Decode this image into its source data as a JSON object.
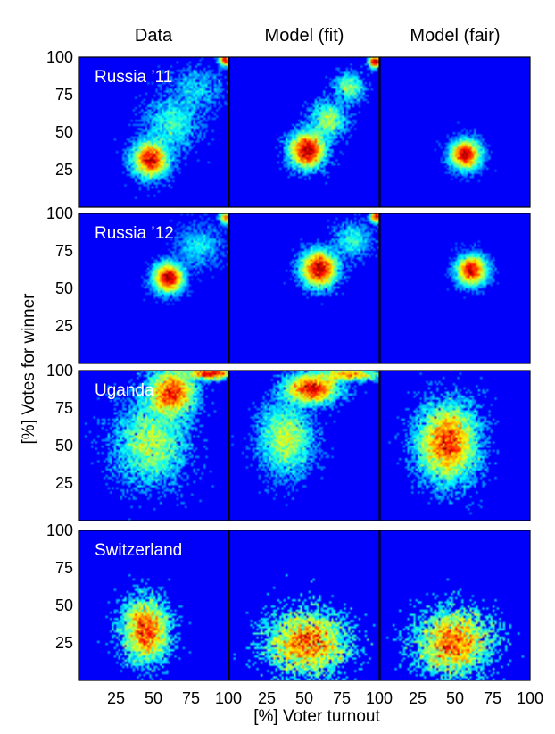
{
  "chart_data": {
    "type": "heatmap",
    "columns": [
      "Data",
      "Model (fit)",
      "Model (fair)"
    ],
    "rows": [
      "Russia ’11",
      "Russia ’12",
      "Uganda",
      "Switzerland"
    ],
    "xlabel": "[%] Voter turnout",
    "ylabel": "[%] Votes for winner",
    "x_ticks": [
      25,
      50,
      75,
      100
    ],
    "y_ticks": [
      25,
      50,
      75,
      100
    ],
    "xlim": [
      0,
      100
    ],
    "ylim": [
      0,
      100
    ],
    "colormap": [
      "#00007f",
      "#0000ff",
      "#0080ff",
      "#00ffff",
      "#80ff80",
      "#ffff00",
      "#ff8000",
      "#ff0000",
      "#800000"
    ],
    "panels": [
      [
        {
          "clusters": [
            {
              "x": 48,
              "y": 32,
              "sx": 6,
              "sy": 6,
              "w": 1
            },
            {
              "x": 62,
              "y": 55,
              "sx": 9,
              "sy": 9,
              "w": 0.35
            },
            {
              "x": 78,
              "y": 78,
              "sx": 9,
              "sy": 8,
              "w": 0.15
            },
            {
              "x": 98,
              "y": 98,
              "sx": 2,
              "sy": 2,
              "w": 0.12
            }
          ],
          "n": 9000
        },
        {
          "clusters": [
            {
              "x": 52,
              "y": 38,
              "sx": 6,
              "sy": 6,
              "w": 1
            },
            {
              "x": 66,
              "y": 58,
              "sx": 6,
              "sy": 6,
              "w": 0.25
            },
            {
              "x": 80,
              "y": 80,
              "sx": 5,
              "sy": 5,
              "w": 0.15
            },
            {
              "x": 97,
              "y": 97,
              "sx": 2,
              "sy": 2,
              "w": 0.12
            }
          ],
          "n": 9000
        },
        {
          "clusters": [
            {
              "x": 57,
              "y": 35,
              "sx": 5,
              "sy": 5,
              "w": 1
            }
          ],
          "n": 6000
        }
      ],
      [
        {
          "clusters": [
            {
              "x": 60,
              "y": 57,
              "sx": 5,
              "sy": 5,
              "w": 1
            },
            {
              "x": 80,
              "y": 78,
              "sx": 8,
              "sy": 7,
              "w": 0.18
            },
            {
              "x": 98,
              "y": 97,
              "sx": 2,
              "sy": 2,
              "w": 0.1
            }
          ],
          "n": 9000
        },
        {
          "clusters": [
            {
              "x": 60,
              "y": 63,
              "sx": 6,
              "sy": 6,
              "w": 1
            },
            {
              "x": 82,
              "y": 82,
              "sx": 6,
              "sy": 6,
              "w": 0.12
            },
            {
              "x": 98,
              "y": 98,
              "sx": 2,
              "sy": 2,
              "w": 0.1
            }
          ],
          "n": 9000
        },
        {
          "clusters": [
            {
              "x": 61,
              "y": 62,
              "sx": 5,
              "sy": 5,
              "w": 1
            }
          ],
          "n": 6000
        }
      ],
      [
        {
          "clusters": [
            {
              "x": 62,
              "y": 85,
              "sx": 8,
              "sy": 8,
              "w": 1
            },
            {
              "x": 48,
              "y": 52,
              "sx": 12,
              "sy": 14,
              "w": 0.9
            },
            {
              "x": 88,
              "y": 98,
              "sx": 8,
              "sy": 2,
              "w": 0.3
            }
          ],
          "n": 12000
        },
        {
          "clusters": [
            {
              "x": 55,
              "y": 88,
              "sx": 9,
              "sy": 5,
              "w": 1
            },
            {
              "x": 38,
              "y": 55,
              "sx": 9,
              "sy": 12,
              "w": 0.8
            },
            {
              "x": 80,
              "y": 97,
              "sx": 10,
              "sy": 2,
              "w": 0.3
            }
          ],
          "n": 12000
        },
        {
          "clusters": [
            {
              "x": 45,
              "y": 52,
              "sx": 10,
              "sy": 13,
              "w": 1
            }
          ],
          "n": 10000
        }
      ],
      [
        {
          "clusters": [
            {
              "x": 45,
              "y": 33,
              "sx": 8,
              "sy": 11,
              "w": 1
            }
          ],
          "n": 4200
        },
        {
          "clusters": [
            {
              "x": 52,
              "y": 25,
              "sx": 14,
              "sy": 11,
              "w": 1
            }
          ],
          "n": 4200
        },
        {
          "clusters": [
            {
              "x": 49,
              "y": 25,
              "sx": 13,
              "sy": 11,
              "w": 1
            }
          ],
          "n": 4200
        }
      ]
    ]
  }
}
